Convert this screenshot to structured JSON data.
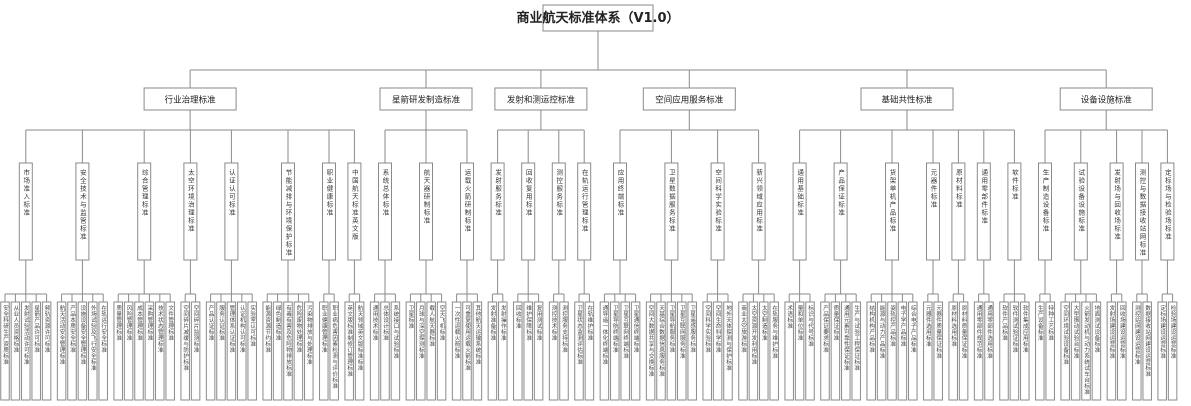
{
  "tree": {
    "title": "商业航天标准体系（V1.0）",
    "categories": [
      {
        "label": "行业治理标准",
        "children": [
          {
            "label": "市场准入标准",
            "leaves": [
              "安全科研生产资质标准",
              "从业人员资格标准",
              "发射试验活动许可标准",
              "星箭产品许可标准",
              "频轨资源许可标准"
            ]
          },
          {
            "label": "安全技术与监管标准",
            "leaves": [
              "航天活动安全管理标准",
              "产品本质安全标准",
              "设施设备安全管理标准",
              "外场试验及飞行安全标准",
              "在轨运行安全标准"
            ]
          },
          {
            "label": "综合管理标准",
            "leaves": [
              "质量管理标准",
              "风险管理标准",
              "成本管理标准",
              "采购管理标准",
              "技术状态管理标准",
              "文件管理标准"
            ]
          },
          {
            "label": "太空环境治理标准",
            "leaves": [
              "空间碎片减缓与防护标准",
              "空间碎片监测标准"
            ]
          },
          {
            "label": "认证认可标准",
            "leaves": [
              "产品认证标准",
              "服务认证标准",
              "管理体系认证标准",
              "认证机构认可标准",
              "实验室认可标准"
            ]
          },
          {
            "label": "节能减排与环境保护标准",
            "leaves": [
              "能源资源节约标准",
              "绿色制造标准",
              "有毒有害及危险物排放标准",
              "危险废物处理标准",
              "污染物排放与处理标准"
            ]
          },
          {
            "label": "职业健康标准",
            "leaves": [
              "职业健康管理标准",
              "职业病危害因素检测与评价标准"
            ]
          },
          {
            "label": "中国航天标准英文版",
            "leaves": [
              "英文版标准制修订管理标准",
              "航天领域英文版标准标准"
            ]
          }
        ]
      },
      {
        "label": "星箭研发制造标准",
        "children": [
          {
            "label": "系统总体标准",
            "leaves": [
              "通用技术标准",
              "总体设计标准",
              "系统接口与试验标准"
            ]
          },
          {
            "label": "航天器研制标准",
            "leaves": [
              "卫星标准",
              "月球与深空探测标准",
              "载人航天器标准",
              "空天飞机标准"
            ]
          },
          {
            "label": "运载火箭研制标准",
            "leaves": [
              "一次性运载火箭标准",
              "可重复使用运载火箭标准",
              "其他航天运输系统标准"
            ]
          }
        ]
      },
      {
        "label": "发射和测运控标准",
        "children": [
          {
            "label": "发射服务标准",
            "leaves": [
              "发射准备标准",
              "发射操作标准"
            ]
          },
          {
            "label": "回收复用标准",
            "leaves": [
              "回收标准",
              "维护保障标准",
              "复用测试标准"
            ]
          },
          {
            "label": "测控服务标准",
            "leaves": [
              "测控技术标准",
              "测控服务支持标准"
            ]
          },
          {
            "label": "在轨运行管理标准",
            "leaves": [
              "卫星状态监测评估标准",
              "在轨维护标准"
            ]
          }
        ]
      },
      {
        "label": "空间应用服务标准",
        "children": [
          {
            "label": "应用终端标准",
            "leaves": [
              "通导遥一体化终端标准",
              "卫星导航终端标准",
              "卫星互联网终端标准",
              "卫星通信终端标准"
            ]
          },
          {
            "label": "卫星数据服务标准",
            "leaves": [
              "空间大数据共享与交换标准",
              "天基综合数据信息服务标准",
              "卫星导航服务标准",
              "卫星互联网服务标准",
              "卫星遥感服务标准"
            ]
          },
          {
            "label": "空间科学实验标准",
            "leaves": [
              "空间科学实验标准",
              "空间生命科学标准",
              "地外天体探测与保护标准"
            ]
          },
          {
            "label": "新兴领域应用标准",
            "leaves": [
              "商业太空旅游标准",
              "太空资源开发利用标准",
              "太空制造标准",
              "在轨服务与维护标准"
            ]
          }
        ]
      },
      {
        "label": "基础共性标准",
        "children": [
          {
            "label": "通用基础标准",
            "leaves": [
              "术语标准",
              "量和单位标准",
              "标识与代号标准"
            ]
          },
          {
            "label": "产品保证标准",
            "leaves": [
              "产品保证要求标准",
              "质量保证标准",
              "通用元素可靠性保证标准",
              "生产与试验工程保证标准"
            ]
          },
          {
            "label": "货架单机产品标准",
            "leaves": [
              "结构机构产品标准",
              "能源与动力产品标准",
              "姿轨控产品标准",
              "电子学产品标准",
              "综合电子产品标准"
            ]
          },
          {
            "label": "元器件标准",
            "leaves": [
              "元器件选用标准",
              "元器件质量保证标准"
            ]
          },
          {
            "label": "原材料标准",
            "leaves": [
              "原材料选用标准",
              "原材料质量保证标准"
            ]
          },
          {
            "label": "通用零部件标准",
            "leaves": [
              "通用零部件规范标准",
              "通用零部件选用标准"
            ]
          },
          {
            "label": "软件标准",
            "leaves": [
              "软件产品标准",
              "软件测试验证标准",
              "软件集成应用标准"
            ]
          }
        ]
      },
      {
        "label": "设备设施标准",
        "children": [
          {
            "label": "生产制造设备标准",
            "leaves": [
              "生产设备标准",
              "特种工艺标准"
            ]
          },
          {
            "label": "试验设备设施标准",
            "leaves": [
              "空间环境试验设备标准",
              "大型振动试验台标准",
              "火箭发动机与动力系统试车台标准",
              "地面测试设备标准"
            ]
          },
          {
            "label": "发射场与回收场标准",
            "leaves": [
              "发射场建设运营标准",
              "回收场建设运营标准"
            ]
          },
          {
            "label": "测控与数据接收站网标准",
            "leaves": [
              "测控站网建设运营标准",
              "数据接收站网建设运营标准"
            ]
          },
          {
            "label": "定标场与检验场标准",
            "leaves": [
              "定标场建设运营标准",
              "检验场建设运营标准"
            ]
          }
        ]
      }
    ]
  }
}
